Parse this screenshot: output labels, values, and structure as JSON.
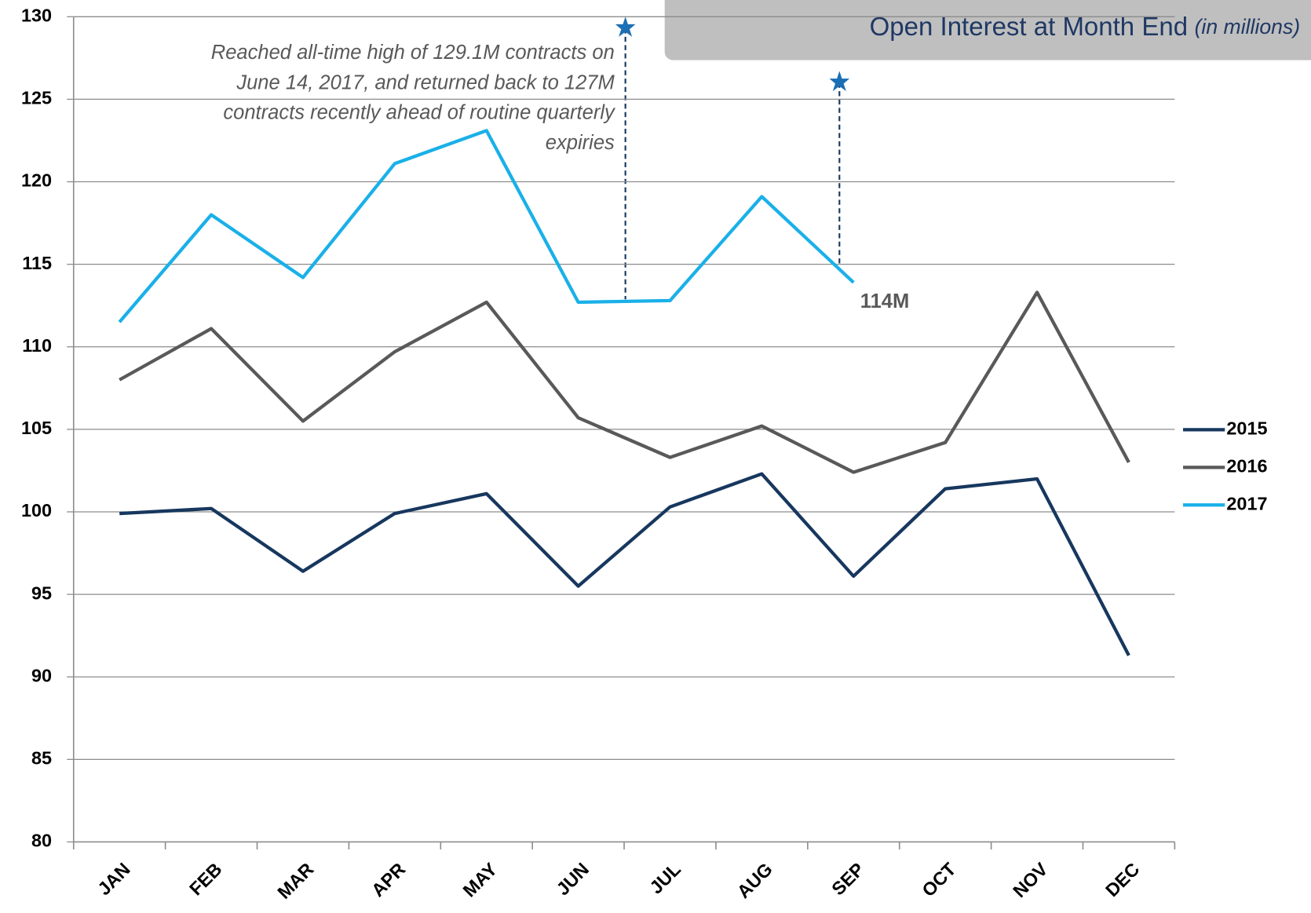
{
  "chart_data": {
    "type": "line",
    "title": "Open Interest at Month End",
    "subtitle": "(in millions)",
    "annotation": [
      "Reached all-time high of 129.1M contracts on",
      "June 14, 2017, and returned back to 127M",
      "contracts recently ahead of routine quarterly",
      "expiries"
    ],
    "categories": [
      "JAN",
      "FEB",
      "MAR",
      "APR",
      "MAY",
      "JUN",
      "JUL",
      "AUG",
      "SEP",
      "OCT",
      "NOV",
      "DEC"
    ],
    "series": [
      {
        "name": "2015",
        "color": "#17375e",
        "values": [
          99.9,
          100.2,
          96.4,
          99.9,
          101.1,
          95.5,
          100.3,
          102.3,
          96.1,
          101.4,
          102.0,
          91.3
        ]
      },
      {
        "name": "2016",
        "color": "#595959",
        "values": [
          108.0,
          111.1,
          105.5,
          109.7,
          112.7,
          105.7,
          103.3,
          105.2,
          102.4,
          104.2,
          113.3,
          103.0
        ]
      },
      {
        "name": "2017",
        "color": "#1ab0e8",
        "values": [
          111.5,
          118.0,
          114.2,
          121.1,
          123.1,
          112.7,
          112.8,
          119.1,
          113.9,
          null,
          null,
          null
        ],
        "value_labels": [
          null,
          null,
          null,
          null,
          null,
          null,
          null,
          null,
          "114M",
          null,
          null,
          null
        ]
      }
    ],
    "ylim": [
      80,
      130
    ],
    "yticks": [
      80,
      85,
      90,
      95,
      100,
      105,
      110,
      115,
      120,
      125,
      130
    ],
    "grid": true,
    "legend": "right"
  }
}
